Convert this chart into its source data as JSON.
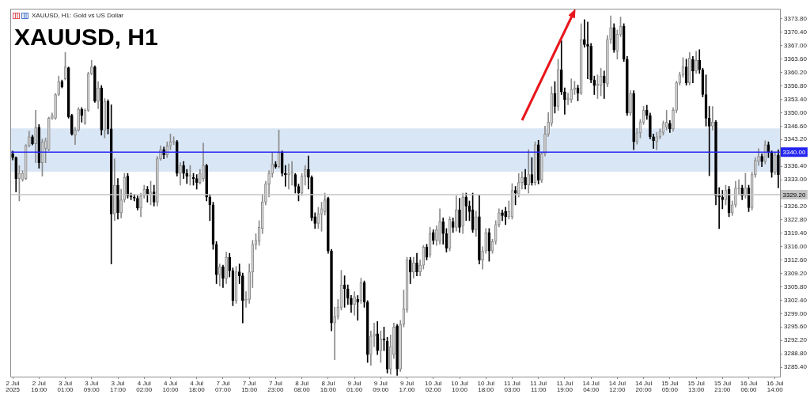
{
  "chart_data": {
    "type": "candlestick",
    "title": "XAUUSD, H1",
    "subtitle": "XAUUSD, H1: Gold vs US Dollar",
    "categories": [
      "2 Jul 2025",
      null,
      null,
      null,
      null,
      null,
      null,
      null,
      "2 Jul 16:00",
      null,
      null,
      null,
      null,
      null,
      null,
      null,
      "3 Jul 01:00",
      null,
      null,
      null,
      null,
      null,
      null,
      null,
      "3 Jul 09:00",
      null,
      null,
      null,
      null,
      null,
      null,
      null,
      "3 Jul 17:00",
      null,
      null,
      null,
      null,
      null,
      null,
      null,
      "4 Jul 02:00",
      null,
      null,
      null,
      null,
      null,
      null,
      null,
      "4 Jul 10:00",
      null,
      null,
      null,
      null,
      null,
      null,
      null,
      "4 Jul 18:00",
      null,
      null,
      null,
      null,
      null,
      null,
      null,
      "7 Jul 07:00",
      null,
      null,
      null,
      null,
      null,
      null,
      null,
      "7 Jul 15:00",
      null,
      null,
      null,
      null,
      null,
      null,
      null,
      "7 Jul 23:00",
      null,
      null,
      null,
      null,
      null,
      null,
      null,
      "8 Jul 08:00",
      null,
      null,
      null,
      null,
      null,
      null,
      null,
      "8 Jul 16:00",
      null,
      null,
      null,
      null,
      null,
      null,
      null,
      "9 Jul 01:00",
      null,
      null,
      null,
      null,
      null,
      null,
      null,
      "9 Jul 09:00",
      null,
      null,
      null,
      null,
      null,
      null,
      null,
      "9 Jul 17:00",
      null,
      null,
      null,
      null,
      null,
      null,
      null,
      "10 Jul 02:00",
      null,
      null,
      null,
      null,
      null,
      null,
      null,
      "10 Jul 10:00",
      null,
      null,
      null,
      null,
      null,
      null,
      null,
      "10 Jul 18:00",
      null,
      null,
      null,
      null,
      null,
      null,
      null,
      "11 Jul 03:00",
      null,
      null,
      null,
      null,
      null,
      null,
      null,
      "11 Jul 11:00",
      null,
      null,
      null,
      null,
      null,
      null,
      null,
      "11 Jul 19:00",
      null,
      null,
      null,
      null,
      null,
      null,
      null,
      "14 Jul 04:00",
      null,
      null,
      null,
      null,
      null,
      null,
      null,
      "14 Jul 12:00",
      null,
      null,
      null,
      null,
      null,
      null,
      null,
      "14 Jul 20:00",
      null,
      null,
      null,
      null,
      null,
      null,
      null,
      "15 Jul 05:00",
      null,
      null,
      null,
      null,
      null,
      null,
      null,
      "15 Jul 13:00",
      null,
      null,
      null,
      null,
      null,
      null,
      null,
      "15 Jul 21:00",
      null,
      null,
      null,
      null,
      null,
      null,
      null,
      "16 Jul 06:00",
      null,
      null,
      null,
      null,
      null,
      null,
      null,
      "16 Jul 14:00",
      null
    ],
    "ohlc": [
      [
        3339.6,
        3340.3,
        3338.0,
        3338.6
      ],
      [
        3338.6,
        3338.8,
        3329.9,
        3333.3
      ],
      [
        3333.3,
        3336.6,
        3327.6,
        3334.6
      ],
      [
        3333.0,
        3335.3,
        3332.6,
        3334.6
      ],
      [
        3333.3,
        3341.9,
        3333.0,
        3341.6
      ],
      [
        3341.6,
        3345.3,
        3341.3,
        3343.9
      ],
      [
        3343.9,
        3344.3,
        3341.8,
        3342.1
      ],
      [
        3342.1,
        3350.6,
        3337.3,
        3346.3
      ],
      [
        3346.3,
        3347.0,
        3335.9,
        3337.3
      ],
      [
        3337.3,
        3343.3,
        3333.9,
        3342.6
      ],
      [
        3340.9,
        3343.6,
        3337.3,
        3342.9
      ],
      [
        3340.6,
        3348.9,
        3340.3,
        3348.6
      ],
      [
        3348.6,
        3349.9,
        3348.3,
        3349.3
      ],
      [
        3348.6,
        3354.9,
        3348.3,
        3354.6
      ],
      [
        3354.6,
        3359.3,
        3354.3,
        3357.9
      ],
      [
        3357.9,
        3358.3,
        3356.3,
        3356.6
      ],
      [
        3358.6,
        3365.3,
        3358.3,
        3361.6
      ],
      [
        3361.4,
        3361.6,
        3348.6,
        3348.9
      ],
      [
        3349.3,
        3349.6,
        3344.3,
        3344.6
      ],
      [
        3344.3,
        3346.3,
        3341.9,
        3345.6
      ],
      [
        3345.6,
        3351.3,
        3345.3,
        3350.9
      ],
      [
        3350.9,
        3351.3,
        3347.6,
        3349.3
      ],
      [
        3347.3,
        3351.0,
        3347.0,
        3350.6
      ],
      [
        3350.6,
        3360.3,
        3350.3,
        3359.9
      ],
      [
        3359.9,
        3363.3,
        3359.6,
        3361.6
      ],
      [
        3361.6,
        3361.9,
        3352.6,
        3352.9
      ],
      [
        3352.9,
        3357.9,
        3351.0,
        3356.3
      ],
      [
        3356.3,
        3356.9,
        3344.3,
        3345.6
      ],
      [
        3345.6,
        3353.6,
        3343.6,
        3352.9
      ],
      [
        3352.9,
        3353.3,
        3344.6,
        3345.9
      ],
      [
        3345.9,
        3352.0,
        3311.6,
        3324.3
      ],
      [
        3324.3,
        3338.3,
        3322.6,
        3331.6
      ],
      [
        3331.6,
        3333.3,
        3323.0,
        3324.6
      ],
      [
        3324.6,
        3330.6,
        3323.3,
        3327.9
      ],
      [
        3327.9,
        3334.6,
        3327.3,
        3333.6
      ],
      [
        3333.9,
        3334.6,
        3328.3,
        3328.9
      ],
      [
        3328.9,
        3329.6,
        3327.9,
        3328.6
      ],
      [
        3328.6,
        3329.3,
        3327.6,
        3328.3
      ],
      [
        3328.3,
        3328.9,
        3325.3,
        3325.8
      ],
      [
        3325.8,
        3329.6,
        3323.6,
        3328.9
      ],
      [
        3328.9,
        3331.6,
        3328.3,
        3330.6
      ],
      [
        3330.6,
        3331.3,
        3327.3,
        3329.3
      ],
      [
        3329.3,
        3332.6,
        3326.6,
        3329.9
      ],
      [
        3329.9,
        3331.6,
        3326.3,
        3327.3
      ],
      [
        3327.3,
        3338.9,
        3326.3,
        3338.3
      ],
      [
        3338.3,
        3341.6,
        3337.9,
        3340.6
      ],
      [
        3340.6,
        3341.3,
        3338.3,
        3339.3
      ],
      [
        3339.3,
        3342.6,
        3338.6,
        3341.6
      ],
      [
        3341.6,
        3344.6,
        3340.6,
        3342.6
      ],
      [
        3342.6,
        3343.9,
        3341.9,
        3342.8
      ],
      [
        3342.6,
        3343.0,
        3333.9,
        3334.6
      ],
      [
        3334.6,
        3337.3,
        3331.6,
        3336.6
      ],
      [
        3336.6,
        3337.6,
        3333.3,
        3334.6
      ],
      [
        3334.6,
        3335.6,
        3332.0,
        3333.9
      ],
      [
        3333.9,
        3336.6,
        3331.6,
        3334.1
      ],
      [
        3333.6,
        3334.6,
        3331.6,
        3333.3
      ],
      [
        3333.3,
        3334.3,
        3330.6,
        3332.3
      ],
      [
        3332.3,
        3335.6,
        3331.9,
        3334.6
      ],
      [
        3333.3,
        3342.3,
        3332.6,
        3336.6
      ],
      [
        3336.6,
        3336.9,
        3327.6,
        3328.6
      ],
      [
        3328.6,
        3329.3,
        3322.6,
        3326.6
      ],
      [
        3326.6,
        3327.3,
        3315.3,
        3316.6
      ],
      [
        3316.6,
        3317.3,
        3306.6,
        3308.9
      ],
      [
        3308.9,
        3311.6,
        3306.0,
        3310.9
      ],
      [
        3310.9,
        3311.3,
        3305.6,
        3307.9
      ],
      [
        3307.9,
        3314.6,
        3306.6,
        3313.3
      ],
      [
        3313.3,
        3314.3,
        3308.3,
        3309.9
      ],
      [
        3309.9,
        3310.6,
        3301.0,
        3302.3
      ],
      [
        3302.3,
        3311.0,
        3301.6,
        3309.6
      ],
      [
        3309.6,
        3311.6,
        3306.6,
        3308.6
      ],
      [
        3308.6,
        3309.3,
        3296.6,
        3302.3
      ],
      [
        3302.3,
        3304.6,
        3300.6,
        3302.6
      ],
      [
        3302.6,
        3311.6,
        3301.6,
        3309.6
      ],
      [
        3309.6,
        3317.6,
        3305.6,
        3316.6
      ],
      [
        3316.6,
        3319.3,
        3315.3,
        3317.6
      ],
      [
        3317.3,
        3322.6,
        3316.3,
        3320.9
      ],
      [
        3320.6,
        3329.3,
        3319.3,
        3327.3
      ],
      [
        3327.3,
        3332.6,
        3326.6,
        3331.9
      ],
      [
        3331.9,
        3335.3,
        3328.6,
        3334.6
      ],
      [
        3334.6,
        3339.9,
        3333.6,
        3336.9
      ],
      [
        3336.9,
        3337.6,
        3335.9,
        3336.3
      ],
      [
        3336.3,
        3345.6,
        3336.0,
        3339.9
      ],
      [
        3339.9,
        3340.3,
        3333.9,
        3334.6
      ],
      [
        3334.6,
        3336.6,
        3331.3,
        3334.3
      ],
      [
        3334.3,
        3337.0,
        3330.6,
        3334.6
      ],
      [
        3334.6,
        3337.6,
        3331.6,
        3334.9
      ],
      [
        3334.3,
        3334.6,
        3329.6,
        3331.3
      ],
      [
        3331.3,
        3331.9,
        3327.6,
        3329.6
      ],
      [
        3329.6,
        3334.6,
        3329.0,
        3333.9
      ],
      [
        3333.9,
        3336.6,
        3331.6,
        3335.6
      ],
      [
        3335.6,
        3339.0,
        3330.6,
        3333.6
      ],
      [
        3333.6,
        3334.0,
        3322.6,
        3323.3
      ],
      [
        3323.6,
        3324.6,
        3320.6,
        3321.9
      ],
      [
        3321.9,
        3326.0,
        3320.6,
        3324.3
      ],
      [
        3324.3,
        3327.3,
        3319.9,
        3325.6
      ],
      [
        3324.9,
        3329.6,
        3324.0,
        3327.9
      ],
      [
        3328.3,
        3328.6,
        3314.3,
        3314.9
      ],
      [
        3314.9,
        3315.3,
        3294.6,
        3296.6
      ],
      [
        3296.6,
        3300.6,
        3287.3,
        3298.3
      ],
      [
        3298.3,
        3302.6,
        3297.6,
        3300.6
      ],
      [
        3300.6,
        3310.0,
        3299.9,
        3306.3
      ],
      [
        3306.3,
        3308.6,
        3300.6,
        3305.3
      ],
      [
        3305.3,
        3306.3,
        3301.3,
        3302.9
      ],
      [
        3302.9,
        3303.6,
        3299.3,
        3301.3
      ],
      [
        3301.3,
        3304.6,
        3298.6,
        3303.3
      ],
      [
        3302.6,
        3303.6,
        3297.3,
        3301.9
      ],
      [
        3302.3,
        3308.0,
        3301.6,
        3306.9
      ],
      [
        3306.9,
        3307.3,
        3300.6,
        3301.9
      ],
      [
        3301.9,
        3302.3,
        3286.6,
        3288.6
      ],
      [
        3288.6,
        3294.6,
        3285.9,
        3293.3
      ],
      [
        3293.3,
        3296.6,
        3290.6,
        3293.9
      ],
      [
        3293.9,
        3297.0,
        3288.6,
        3289.6
      ],
      [
        3289.6,
        3294.6,
        3286.6,
        3292.6
      ],
      [
        3292.6,
        3295.6,
        3289.6,
        3292.3
      ],
      [
        3292.0,
        3293.0,
        3283.9,
        3284.9
      ],
      [
        3284.9,
        3293.6,
        3283.6,
        3290.6
      ],
      [
        3288.6,
        3296.6,
        3287.6,
        3295.6
      ],
      [
        3295.9,
        3296.3,
        3283.3,
        3284.9
      ],
      [
        3284.9,
        3297.3,
        3284.3,
        3296.3
      ],
      [
        3296.3,
        3305.0,
        3295.6,
        3300.3
      ],
      [
        3300.0,
        3313.3,
        3299.3,
        3312.6
      ],
      [
        3312.6,
        3313.3,
        3306.6,
        3309.6
      ],
      [
        3309.6,
        3313.3,
        3308.0,
        3311.9
      ],
      [
        3311.9,
        3314.3,
        3308.6,
        3309.6
      ],
      [
        3309.6,
        3312.6,
        3308.6,
        3311.3
      ],
      [
        3311.3,
        3316.3,
        3310.3,
        3315.9
      ],
      [
        3315.9,
        3316.6,
        3312.6,
        3313.3
      ],
      [
        3313.9,
        3320.9,
        3313.3,
        3319.3
      ],
      [
        3319.6,
        3320.3,
        3316.6,
        3317.6
      ],
      [
        3317.6,
        3321.3,
        3316.3,
        3320.3
      ],
      [
        3317.3,
        3325.6,
        3316.6,
        3322.3
      ],
      [
        3322.3,
        3323.3,
        3316.6,
        3319.3
      ],
      [
        3319.3,
        3320.6,
        3314.6,
        3315.6
      ],
      [
        3315.6,
        3323.6,
        3314.9,
        3322.9
      ],
      [
        3322.3,
        3323.3,
        3319.6,
        3320.9
      ],
      [
        3320.9,
        3328.9,
        3319.9,
        3325.3
      ],
      [
        3325.3,
        3328.3,
        3319.6,
        3320.9
      ],
      [
        3321.3,
        3329.6,
        3319.3,
        3328.6
      ],
      [
        3328.6,
        3329.6,
        3322.6,
        3326.3
      ],
      [
        3326.3,
        3327.6,
        3322.6,
        3324.9
      ],
      [
        3325.3,
        3329.6,
        3319.6,
        3320.3
      ],
      [
        3320.3,
        3325.0,
        3318.6,
        3323.6
      ],
      [
        3323.6,
        3329.0,
        3311.6,
        3312.6
      ],
      [
        3312.6,
        3316.0,
        3310.3,
        3314.9
      ],
      [
        3314.9,
        3320.6,
        3314.3,
        3319.6
      ],
      [
        3319.6,
        3320.6,
        3312.3,
        3314.9
      ],
      [
        3314.9,
        3317.9,
        3314.3,
        3317.3
      ],
      [
        3317.3,
        3322.6,
        3316.6,
        3321.6
      ],
      [
        3321.6,
        3325.6,
        3321.0,
        3324.6
      ],
      [
        3324.6,
        3325.3,
        3322.6,
        3323.9
      ],
      [
        3324.9,
        3326.0,
        3321.6,
        3323.6
      ],
      [
        3323.6,
        3327.6,
        3323.0,
        3324.9
      ],
      [
        3323.6,
        3332.0,
        3323.0,
        3330.3
      ],
      [
        3330.3,
        3331.3,
        3326.6,
        3329.6
      ],
      [
        3329.3,
        3334.6,
        3328.6,
        3332.3
      ],
      [
        3332.3,
        3335.0,
        3330.6,
        3333.6
      ],
      [
        3333.6,
        3335.6,
        3330.6,
        3331.6
      ],
      [
        3331.6,
        3340.6,
        3329.6,
        3334.3
      ],
      [
        3334.3,
        3338.6,
        3331.6,
        3332.3
      ],
      [
        3332.3,
        3342.6,
        3331.6,
        3341.9
      ],
      [
        3341.9,
        3343.0,
        3331.9,
        3332.9
      ],
      [
        3332.9,
        3340.0,
        3332.3,
        3339.6
      ],
      [
        3339.6,
        3346.6,
        3339.0,
        3344.6
      ],
      [
        3344.6,
        3350.0,
        3344.0,
        3347.6
      ],
      [
        3347.3,
        3356.6,
        3346.6,
        3354.9
      ],
      [
        3354.9,
        3357.9,
        3349.9,
        3351.6
      ],
      [
        3351.6,
        3363.6,
        3350.6,
        3360.9
      ],
      [
        3360.9,
        3368.3,
        3354.6,
        3355.3
      ],
      [
        3355.3,
        3356.3,
        3349.6,
        3353.3
      ],
      [
        3353.3,
        3355.0,
        3352.0,
        3353.6
      ],
      [
        3353.3,
        3358.6,
        3352.6,
        3355.9
      ],
      [
        3355.9,
        3358.0,
        3354.6,
        3356.3
      ],
      [
        3356.3,
        3357.0,
        3353.0,
        3354.9
      ],
      [
        3354.9,
        3372.6,
        3354.6,
        3368.6
      ],
      [
        3368.6,
        3373.6,
        3366.6,
        3367.3
      ],
      [
        3367.3,
        3373.0,
        3358.6,
        3366.9
      ],
      [
        3366.9,
        3367.6,
        3357.6,
        3358.3
      ],
      [
        3358.3,
        3359.3,
        3354.6,
        3356.9
      ],
      [
        3356.9,
        3359.6,
        3353.6,
        3357.3
      ],
      [
        3357.0,
        3361.3,
        3354.3,
        3359.3
      ],
      [
        3359.3,
        3360.6,
        3353.6,
        3357.6
      ],
      [
        3357.3,
        3369.6,
        3356.6,
        3368.6
      ],
      [
        3368.6,
        3374.6,
        3367.6,
        3371.6
      ],
      [
        3371.6,
        3372.6,
        3365.3,
        3365.9
      ],
      [
        3365.6,
        3371.0,
        3363.6,
        3369.9
      ],
      [
        3369.9,
        3374.3,
        3369.3,
        3371.9
      ],
      [
        3371.9,
        3372.6,
        3363.0,
        3363.6
      ],
      [
        3363.6,
        3364.3,
        3349.3,
        3349.9
      ],
      [
        3349.9,
        3355.6,
        3349.3,
        3354.9
      ],
      [
        3354.9,
        3355.6,
        3340.6,
        3342.6
      ],
      [
        3342.6,
        3346.0,
        3342.0,
        3344.9
      ],
      [
        3344.9,
        3348.3,
        3343.6,
        3347.6
      ],
      [
        3347.6,
        3351.6,
        3347.0,
        3350.6
      ],
      [
        3350.6,
        3351.9,
        3348.3,
        3349.3
      ],
      [
        3349.3,
        3349.9,
        3343.3,
        3343.9
      ],
      [
        3343.9,
        3344.6,
        3340.9,
        3342.9
      ],
      [
        3342.6,
        3345.0,
        3340.6,
        3343.9
      ],
      [
        3343.9,
        3345.9,
        3343.3,
        3345.3
      ],
      [
        3345.0,
        3347.9,
        3344.3,
        3347.3
      ],
      [
        3346.3,
        3350.6,
        3345.6,
        3347.6
      ],
      [
        3347.3,
        3348.0,
        3345.0,
        3345.9
      ],
      [
        3345.9,
        3351.3,
        3345.3,
        3350.6
      ],
      [
        3350.6,
        3358.0,
        3350.0,
        3357.6
      ],
      [
        3357.6,
        3360.3,
        3357.0,
        3359.6
      ],
      [
        3359.6,
        3364.0,
        3359.0,
        3361.6
      ],
      [
        3361.6,
        3363.6,
        3357.0,
        3357.6
      ],
      [
        3357.6,
        3365.3,
        3357.0,
        3363.9
      ],
      [
        3363.6,
        3364.3,
        3357.6,
        3360.6
      ],
      [
        3360.6,
        3365.6,
        3360.0,
        3363.3
      ],
      [
        3363.3,
        3366.0,
        3360.0,
        3360.9
      ],
      [
        3360.9,
        3361.3,
        3354.0,
        3354.6
      ],
      [
        3354.6,
        3359.6,
        3346.6,
        3348.6
      ],
      [
        3348.6,
        3351.6,
        3334.0,
        3346.6
      ],
      [
        3346.6,
        3351.6,
        3345.6,
        3347.6
      ],
      [
        3347.6,
        3348.0,
        3326.6,
        3328.9
      ],
      [
        3328.9,
        3331.0,
        3320.6,
        3328.6
      ],
      [
        3328.6,
        3330.3,
        3325.6,
        3327.9
      ],
      [
        3327.9,
        3331.6,
        3326.6,
        3330.3
      ],
      [
        3330.6,
        3331.3,
        3323.6,
        3324.6
      ],
      [
        3324.6,
        3327.6,
        3323.9,
        3326.6
      ],
      [
        3326.6,
        3332.6,
        3326.0,
        3330.9
      ],
      [
        3330.6,
        3333.0,
        3329.3,
        3330.9
      ],
      [
        3330.9,
        3331.6,
        3327.9,
        3328.9
      ],
      [
        3328.9,
        3334.6,
        3328.3,
        3330.9
      ],
      [
        3330.9,
        3331.6,
        3324.9,
        3325.9
      ],
      [
        3325.9,
        3334.9,
        3325.3,
        3334.3
      ],
      [
        3334.3,
        3338.6,
        3333.6,
        3337.9
      ],
      [
        3337.6,
        3340.9,
        3336.6,
        3338.9
      ],
      [
        3338.9,
        3339.6,
        3336.3,
        3337.6
      ],
      [
        3337.6,
        3342.9,
        3337.0,
        3341.9
      ],
      [
        3341.9,
        3342.6,
        3338.6,
        3339.9
      ],
      [
        3339.9,
        3340.3,
        3333.6,
        3334.9
      ],
      [
        3334.9,
        3340.0,
        3334.3,
        3339.3
      ],
      [
        3339.3,
        3340.6,
        3330.9,
        3334.3
      ]
    ],
    "ylim": [
      3283.0,
      3376.2
    ],
    "yticks": [
      {
        "value": 3285.4,
        "label": "3285.40"
      },
      {
        "value": 3288.8,
        "label": "3288.80"
      },
      {
        "value": 3292.2,
        "label": "3292.20"
      },
      {
        "value": 3295.6,
        "label": "3295.60"
      },
      {
        "value": 3299.0,
        "label": "3299.00"
      },
      {
        "value": 3302.4,
        "label": "3302.40"
      },
      {
        "value": 3305.8,
        "label": "3305.80"
      },
      {
        "value": 3309.2,
        "label": "3309.20"
      },
      {
        "value": 3312.6,
        "label": "3312.60"
      },
      {
        "value": 3316.0,
        "label": "3316.00"
      },
      {
        "value": 3319.4,
        "label": "3319.40"
      },
      {
        "value": 3322.8,
        "label": "3322.80"
      },
      {
        "value": 3326.2,
        "label": "3326.20"
      },
      {
        "value": 3333.0,
        "label": "3333.00"
      },
      {
        "value": 3336.4,
        "label": "3336.40"
      },
      {
        "value": 3343.2,
        "label": "3343.20"
      },
      {
        "value": 3346.6,
        "label": "3346.60"
      },
      {
        "value": 3350.0,
        "label": "3350.00"
      },
      {
        "value": 3353.4,
        "label": "3353.40"
      },
      {
        "value": 3356.8,
        "label": "3356.80"
      },
      {
        "value": 3360.2,
        "label": "3360.20"
      },
      {
        "value": 3363.6,
        "label": "3363.60"
      },
      {
        "value": 3367.0,
        "label": "3367.00"
      },
      {
        "value": 3370.4,
        "label": "3370.40"
      },
      {
        "value": 3373.8,
        "label": "3373.80"
      }
    ],
    "ref_lines": [
      {
        "axis": "y",
        "value": 3340,
        "label": "3340.00",
        "color": "#2424f2"
      },
      {
        "axis": "y",
        "value": 3329.2,
        "label": "3329.20",
        "color": "#c4c4c4"
      }
    ],
    "bands": [
      {
        "axis": "y",
        "from": 3335.0,
        "to": 3346.0,
        "color": "#d9e6f5"
      }
    ]
  }
}
